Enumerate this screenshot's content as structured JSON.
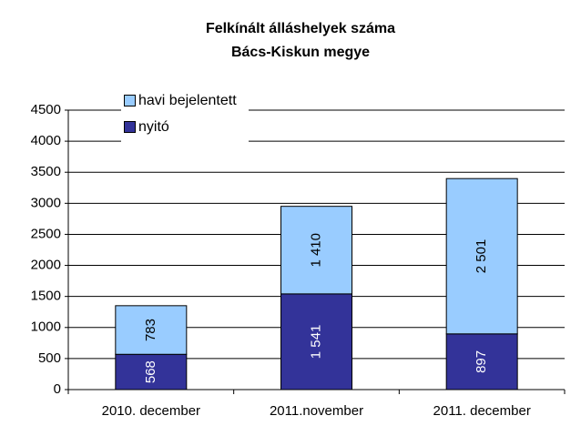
{
  "chart_data": {
    "type": "stacked_bar",
    "title": "Felkínált álláshelyek száma",
    "subtitle": "Bács-Kiskun megye",
    "categories": [
      "2010. december",
      "2011.november",
      "2011. december"
    ],
    "series": [
      {
        "name": "nyitó",
        "color": "#333399",
        "values": [
          568,
          1541,
          897
        ],
        "value_labels": [
          "568",
          "1 541",
          "897"
        ]
      },
      {
        "name": "havi bejelentett",
        "color": "#99ccff",
        "values": [
          783,
          1410,
          2501
        ],
        "value_labels": [
          "783",
          "1 410",
          "2 501"
        ]
      }
    ],
    "ylim": [
      0,
      4500
    ],
    "yticks": [
      0,
      500,
      1000,
      1500,
      2000,
      2500,
      3000,
      3500,
      4000,
      4500
    ],
    "grid": true,
    "legend": "top-left"
  }
}
